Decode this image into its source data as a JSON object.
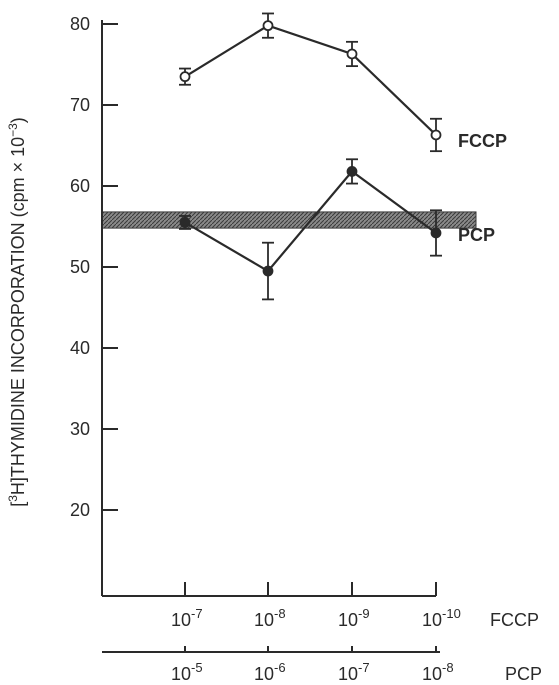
{
  "chart_data": {
    "type": "line",
    "ylabel": "[3H]THYMIDINE INCORPORATION (cpm × 10−3)",
    "ylabel_parts": {
      "bracket_open": "[",
      "sup_3": "3",
      "main": "H]THYMIDINE INCORPORATION (cpm × 10",
      "sup_exp": "−3",
      "close": ")"
    },
    "ylim": [
      10,
      82
    ],
    "yticks": [
      20,
      30,
      40,
      50,
      60,
      70,
      80
    ],
    "grid": false,
    "x_axes": [
      {
        "name": "FCCP",
        "tick_labels": [
          "10",
          "10",
          "10",
          "10"
        ],
        "tick_exponents": [
          "-7",
          "-8",
          "-9",
          "-10"
        ]
      },
      {
        "name": "PCP",
        "tick_labels": [
          "10",
          "10",
          "10",
          "10"
        ],
        "tick_exponents": [
          "-5",
          "-6",
          "-7",
          "-8"
        ]
      }
    ],
    "series": [
      {
        "name": "FCCP",
        "marker": "open-circle",
        "values": [
          73.5,
          79.8,
          76.3,
          66.3
        ],
        "errors": [
          1.0,
          1.5,
          1.5,
          2.0
        ]
      },
      {
        "name": "PCP",
        "marker": "filled-circle",
        "values": [
          55.5,
          49.5,
          61.8,
          54.2
        ],
        "errors": [
          0.8,
          3.5,
          1.5,
          2.8
        ]
      }
    ],
    "control_band": {
      "low": 54.8,
      "high": 56.8
    },
    "colors": {
      "ink": "#2a2a2a",
      "band": "#6f6f6f"
    }
  }
}
